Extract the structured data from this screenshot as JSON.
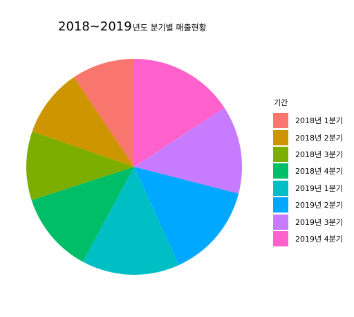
{
  "title": {
    "main": "2018~2019",
    "rest": "년도 분기별 매출현황"
  },
  "chart_data": {
    "type": "pie",
    "title": "2018~2019년도 분기별 매출현황",
    "legend_title": "기간",
    "legend_position": "right",
    "categories": [
      "2018년 1분기",
      "2018년 2분기",
      "2018년 3분기",
      "2018년 4분기",
      "2019년 1분기",
      "2019년 2분기",
      "2019년 3분기",
      "2019년 4분기"
    ],
    "values": [
      9.4,
      10.3,
      10.3,
      12.1,
      14.7,
      14.2,
      13.2,
      15.8
    ],
    "colors": [
      "#F8766D",
      "#CD9600",
      "#7CAE00",
      "#00BE67",
      "#00BFC4",
      "#00A9FF",
      "#C77CFF",
      "#FF61CC"
    ]
  }
}
